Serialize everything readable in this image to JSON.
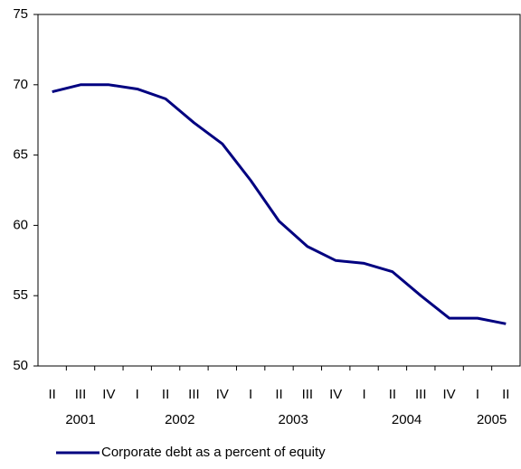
{
  "chart_data": {
    "type": "line",
    "categories": [
      "II",
      "III",
      "IV",
      "I",
      "II",
      "III",
      "IV",
      "I",
      "II",
      "III",
      "IV",
      "I",
      "II",
      "III",
      "IV",
      "I",
      "II"
    ],
    "year_labels": [
      "2001",
      "2002",
      "2003",
      "2004",
      "2005"
    ],
    "series": [
      {
        "name": "Corporate debt as a percent of equity",
        "color": "#000080",
        "values": [
          69.5,
          70.0,
          70.0,
          69.7,
          69.0,
          67.3,
          65.8,
          63.2,
          60.3,
          58.5,
          57.5,
          57.3,
          56.7,
          55.0,
          53.4,
          53.4,
          53.0
        ]
      }
    ],
    "ylim": [
      50,
      75
    ],
    "yticks": [
      50,
      55,
      60,
      65,
      70,
      75
    ],
    "grid": false
  }
}
